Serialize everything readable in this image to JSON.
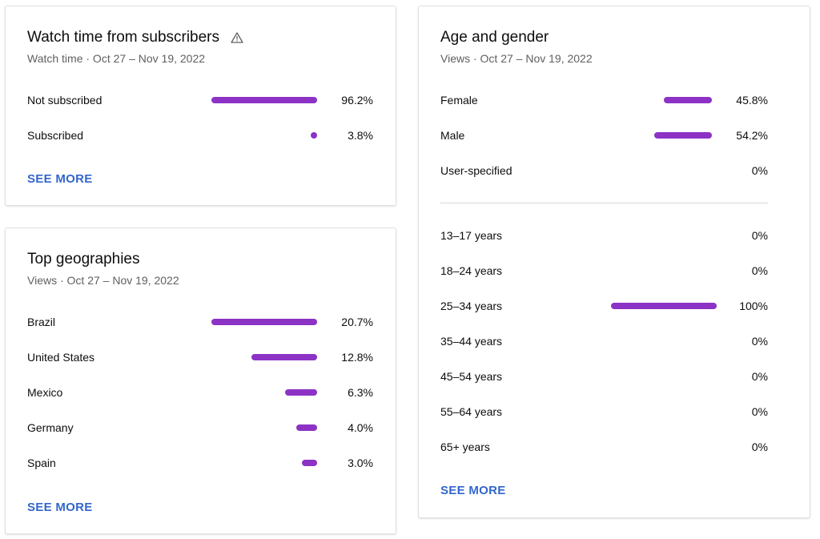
{
  "accent_color": "#8c33c6",
  "link_color": "#3366cc",
  "subscribers_card": {
    "title": "Watch time from subscribers",
    "warning_icon": "warning-triangle-icon",
    "subtitle": "Watch time · Oct 27 – Nov 19, 2022",
    "rows": [
      {
        "label": "Not subscribed",
        "value": "96.2%",
        "share": 0.962
      },
      {
        "label": "Subscribed",
        "value": "3.8%",
        "share": 0.038
      }
    ],
    "see_more": "SEE MORE"
  },
  "geo_card": {
    "title": "Top geographies",
    "subtitle": "Views · Oct 27 – Nov 19, 2022",
    "rows": [
      {
        "label": "Brazil",
        "value": "20.7%",
        "share": 0.207
      },
      {
        "label": "United States",
        "value": "12.8%",
        "share": 0.128
      },
      {
        "label": "Mexico",
        "value": "6.3%",
        "share": 0.063
      },
      {
        "label": "Germany",
        "value": "4.0%",
        "share": 0.04
      },
      {
        "label": "Spain",
        "value": "3.0%",
        "share": 0.03
      }
    ],
    "see_more": "SEE MORE"
  },
  "age_gender_card": {
    "title": "Age and gender",
    "subtitle": "Views · Oct 27 – Nov 19, 2022",
    "gender_rows": [
      {
        "label": "Female",
        "value": "45.8%",
        "share": 0.458
      },
      {
        "label": "Male",
        "value": "54.2%",
        "share": 0.542
      },
      {
        "label": "User-specified",
        "value": "0%",
        "share": 0
      }
    ],
    "age_rows": [
      {
        "label": "13–17 years",
        "value": "0%",
        "share": 0
      },
      {
        "label": "18–24 years",
        "value": "0%",
        "share": 0
      },
      {
        "label": "25–34 years",
        "value": "100%",
        "share": 1.0
      },
      {
        "label": "35–44 years",
        "value": "0%",
        "share": 0
      },
      {
        "label": "45–54 years",
        "value": "0%",
        "share": 0
      },
      {
        "label": "55–64 years",
        "value": "0%",
        "share": 0
      },
      {
        "label": "65+ years",
        "value": "0%",
        "share": 0
      }
    ],
    "see_more": "SEE MORE"
  }
}
